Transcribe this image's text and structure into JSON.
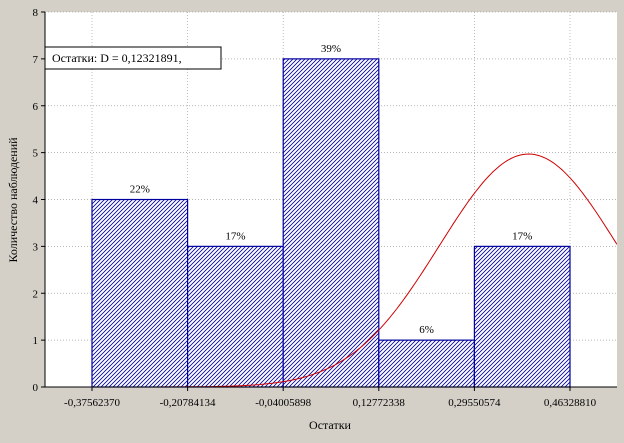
{
  "chart_data": {
    "type": "bar",
    "xlabel": "Остатки",
    "ylabel": "Количество наблюдений",
    "ylim": [
      0,
      8
    ],
    "yticks": [
      "0",
      "1",
      "2",
      "3",
      "4",
      "5",
      "6",
      "7",
      "8"
    ],
    "xticks": [
      "-0,37562370",
      "-0,20784134",
      "-0,04005898",
      "0,12772338",
      "0,29550574",
      "0,46328810"
    ],
    "bins": [
      {
        "from": "-0,37562370",
        "to": "-0,20784134",
        "value": 4,
        "label": "22%"
      },
      {
        "from": "-0,20784134",
        "to": "-0,04005898",
        "value": 3,
        "label": "17%"
      },
      {
        "from": "-0,04005898",
        "to": "0,12772338",
        "value": 7,
        "label": "39%"
      },
      {
        "from": "0,12772338",
        "to": "0,29550574",
        "value": 1,
        "label": "6%"
      },
      {
        "from": "0,29550574",
        "to": "0,46328810",
        "value": 3,
        "label": "17%"
      }
    ],
    "curve": "normal",
    "curve_peak": 4.97,
    "legend": "Остатки:   D = 0,12321891,",
    "legend_placement": "top-left",
    "grid": true,
    "colors": {
      "bar_stroke": "#0000a0",
      "curve": "#d00000",
      "background": "#ffffff",
      "frame": "#d4d0c8"
    }
  }
}
